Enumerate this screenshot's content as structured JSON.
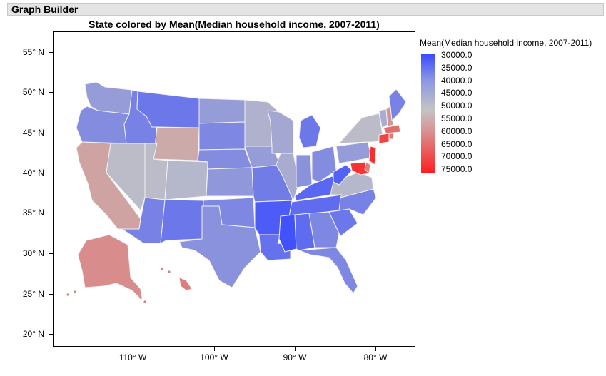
{
  "window": {
    "title": "Graph Builder"
  },
  "chart_data": {
    "type": "map",
    "title": "State colored by Mean(Median household income, 2007-2011)",
    "xlabel": "",
    "ylabel": "",
    "x_ticks": [
      "110° W",
      "100° W",
      "90° W",
      "80° W"
    ],
    "y_ticks": [
      "55° N",
      "50° N",
      "45° N",
      "40° N",
      "35° N",
      "30° N",
      "25° N",
      "20° N"
    ],
    "legend": {
      "title": "Mean(Median household income, 2007-2011)",
      "labels": [
        "30000.0",
        "35000.0",
        "40000.0",
        "45000.0",
        "50000.0",
        "55000.0",
        "60000.0",
        "65000.0",
        "70000.0",
        "75000.0"
      ],
      "min": 30000,
      "max": 75000,
      "colors": [
        "#3b4cff",
        "#c4c4c4",
        "#ff1d1d"
      ]
    },
    "states": [
      {
        "name": "WA",
        "value": 45000
      },
      {
        "name": "OR",
        "value": 42000
      },
      {
        "name": "CA",
        "value": 57000
      },
      {
        "name": "NV",
        "value": 51000
      },
      {
        "name": "ID",
        "value": 40000
      },
      {
        "name": "MT",
        "value": 38000
      },
      {
        "name": "WY",
        "value": 56000
      },
      {
        "name": "UT",
        "value": 51000
      },
      {
        "name": "CO",
        "value": 50000
      },
      {
        "name": "AZ",
        "value": 40000
      },
      {
        "name": "NM",
        "value": 38000
      },
      {
        "name": "ND",
        "value": 45000
      },
      {
        "name": "SD",
        "value": 41000
      },
      {
        "name": "NE",
        "value": 42000
      },
      {
        "name": "KS",
        "value": 44000
      },
      {
        "name": "OK",
        "value": 41000
      },
      {
        "name": "TX",
        "value": 43000
      },
      {
        "name": "MN",
        "value": 49000
      },
      {
        "name": "IA",
        "value": 45000
      },
      {
        "name": "MO",
        "value": 39000
      },
      {
        "name": "AR",
        "value": 33000
      },
      {
        "name": "LA",
        "value": 37000
      },
      {
        "name": "WI",
        "value": 47000
      },
      {
        "name": "IL",
        "value": 48000
      },
      {
        "name": "MI",
        "value": 38000
      },
      {
        "name": "IN",
        "value": 43000
      },
      {
        "name": "OH",
        "value": 42000
      },
      {
        "name": "KY",
        "value": 35000
      },
      {
        "name": "TN",
        "value": 36000
      },
      {
        "name": "MS",
        "value": 31000
      },
      {
        "name": "AL",
        "value": 36000
      },
      {
        "name": "GA",
        "value": 41000
      },
      {
        "name": "FL",
        "value": 41000
      },
      {
        "name": "SC",
        "value": 38000
      },
      {
        "name": "NC",
        "value": 40000
      },
      {
        "name": "VA",
        "value": 50000
      },
      {
        "name": "WV",
        "value": 34000
      },
      {
        "name": "PA",
        "value": 45000
      },
      {
        "name": "NY",
        "value": 51000
      },
      {
        "name": "VT",
        "value": 48000
      },
      {
        "name": "NH",
        "value": 59000
      },
      {
        "name": "ME",
        "value": 40000
      },
      {
        "name": "MA",
        "value": 64000
      },
      {
        "name": "CT",
        "value": 70000
      },
      {
        "name": "RI",
        "value": 63000
      },
      {
        "name": "NJ",
        "value": 73000
      },
      {
        "name": "DE",
        "value": 62000
      },
      {
        "name": "MD",
        "value": 72000
      },
      {
        "name": "AK",
        "value": 60000
      },
      {
        "name": "HI",
        "value": 62000
      }
    ]
  }
}
